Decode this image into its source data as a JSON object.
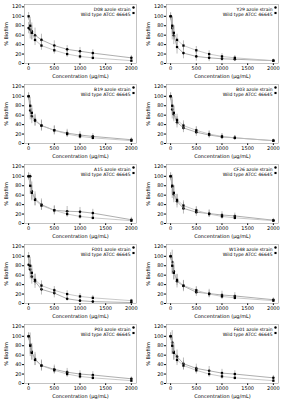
{
  "chart_data": [
    {
      "type": "line",
      "xlabel": "Concentration (μg/mL)",
      "ylabel": "% Biofilm",
      "x": [
        0,
        31.25,
        62.5,
        125,
        250,
        500,
        750,
        1000,
        1250,
        2000
      ],
      "xlim": [
        -80,
        2100
      ],
      "xticks": [
        0,
        500,
        1000,
        1500,
        2000
      ],
      "ylim": [
        0,
        125
      ],
      "yticks": [
        0,
        20,
        40,
        60,
        80,
        100,
        120
      ],
      "grid": false,
      "legend": "upper right",
      "series": [
        {
          "name": "D08 azole strain",
          "color": "#999999",
          "marker": "circle",
          "values": [
            75,
            72,
            68,
            60,
            50,
            38,
            30,
            26,
            22,
            12
          ],
          "yerr": [
            12,
            20,
            18,
            15,
            12,
            10,
            8,
            8,
            7,
            5
          ]
        },
        {
          "name": "Wild type ATCC 46645",
          "color": "#bbbbbb",
          "marker": "square",
          "values": [
            100,
            80,
            65,
            50,
            38,
            28,
            20,
            15,
            12,
            6
          ],
          "yerr": [
            8,
            18,
            15,
            12,
            10,
            8,
            7,
            6,
            5,
            3
          ]
        }
      ]
    },
    {
      "type": "line",
      "xlabel": "Concentration (μg/mL)",
      "ylabel": "% Biofilm",
      "x": [
        0,
        31.25,
        62.5,
        125,
        250,
        500,
        750,
        1000,
        1250,
        2000
      ],
      "xlim": [
        -80,
        2100
      ],
      "xticks": [
        0,
        500,
        1000,
        1500,
        2000
      ],
      "ylim": [
        0,
        125
      ],
      "yticks": [
        0,
        20,
        40,
        60,
        80,
        100,
        120
      ],
      "grid": false,
      "legend": "upper right",
      "series": [
        {
          "name": "Y29 azole strain",
          "color": "#999999",
          "marker": "circle",
          "values": [
            100,
            75,
            60,
            35,
            22,
            15,
            12,
            10,
            9,
            6
          ],
          "yerr": [
            5,
            25,
            20,
            15,
            12,
            10,
            8,
            6,
            5,
            3
          ]
        },
        {
          "name": "Wild type ATCC 46645",
          "color": "#bbbbbb",
          "marker": "square",
          "values": [
            100,
            80,
            65,
            50,
            38,
            28,
            20,
            15,
            12,
            6
          ],
          "yerr": [
            8,
            18,
            15,
            12,
            10,
            8,
            7,
            6,
            5,
            3
          ]
        }
      ]
    },
    {
      "type": "line",
      "xlabel": "Concentration (μg/mL)",
      "ylabel": "% Biofilm",
      "x": [
        0,
        31.25,
        62.5,
        125,
        250,
        500,
        750,
        1000,
        1250,
        2000
      ],
      "xlim": [
        -80,
        2100
      ],
      "xticks": [
        0,
        500,
        1000,
        1500,
        2000
      ],
      "ylim": [
        0,
        125
      ],
      "yticks": [
        0,
        20,
        40,
        60,
        80,
        100,
        120
      ],
      "grid": false,
      "legend": "upper right",
      "series": [
        {
          "name": "B19 azole strain",
          "color": "#999999",
          "marker": "circle",
          "values": [
            100,
            70,
            58,
            48,
            38,
            28,
            22,
            18,
            15,
            8
          ],
          "yerr": [
            5,
            20,
            16,
            12,
            12,
            10,
            8,
            7,
            6,
            4
          ]
        },
        {
          "name": "Wild type ATCC 46645",
          "color": "#bbbbbb",
          "marker": "square",
          "values": [
            100,
            80,
            65,
            50,
            38,
            28,
            20,
            15,
            12,
            6
          ],
          "yerr": [
            8,
            18,
            15,
            12,
            10,
            8,
            7,
            6,
            5,
            3
          ]
        }
      ]
    },
    {
      "type": "line",
      "xlabel": "Concentration (μg/mL)",
      "ylabel": "% Biofilm",
      "x": [
        0,
        31.25,
        62.5,
        125,
        250,
        500,
        750,
        1000,
        1250,
        2000
      ],
      "xlim": [
        -80,
        2100
      ],
      "xticks": [
        0,
        500,
        1000,
        1500,
        2000
      ],
      "ylim": [
        0,
        125
      ],
      "yticks": [
        0,
        20,
        40,
        60,
        80,
        100,
        120
      ],
      "grid": false,
      "legend": "upper right",
      "series": [
        {
          "name": "B03 azole strain",
          "color": "#999999",
          "marker": "circle",
          "values": [
            100,
            72,
            62,
            45,
            33,
            24,
            18,
            14,
            12,
            6
          ],
          "yerr": [
            5,
            20,
            16,
            12,
            10,
            9,
            7,
            6,
            5,
            3
          ]
        },
        {
          "name": "Wild type ATCC 46645",
          "color": "#bbbbbb",
          "marker": "square",
          "values": [
            100,
            80,
            65,
            50,
            38,
            28,
            20,
            15,
            12,
            6
          ],
          "yerr": [
            8,
            18,
            15,
            12,
            10,
            8,
            7,
            6,
            5,
            3
          ]
        }
      ]
    },
    {
      "type": "line",
      "xlabel": "Concentration (μg/mL)",
      "ylabel": "% Biofilm",
      "x": [
        0,
        31.25,
        62.5,
        125,
        250,
        500,
        750,
        1000,
        1250,
        2000
      ],
      "xlim": [
        -80,
        2100
      ],
      "xticks": [
        0,
        500,
        1000,
        1500,
        2000
      ],
      "ylim": [
        0,
        125
      ],
      "yticks": [
        0,
        20,
        40,
        60,
        80,
        100,
        120
      ],
      "grid": false,
      "legend": "upper right",
      "series": [
        {
          "name": "A15 azole strain",
          "color": "#999999",
          "marker": "circle",
          "values": [
            100,
            100,
            68,
            52,
            40,
            28,
            26,
            25,
            22,
            8
          ],
          "yerr": [
            5,
            5,
            20,
            15,
            12,
            10,
            10,
            9,
            8,
            5
          ]
        },
        {
          "name": "Wild type ATCC 46645",
          "color": "#bbbbbb",
          "marker": "square",
          "values": [
            100,
            80,
            65,
            50,
            38,
            28,
            20,
            15,
            12,
            6
          ],
          "yerr": [
            8,
            18,
            15,
            12,
            10,
            8,
            7,
            6,
            5,
            3
          ]
        }
      ]
    },
    {
      "type": "line",
      "xlabel": "Concentration (μg/mL)",
      "ylabel": "% Biofilm",
      "x": [
        0,
        31.25,
        62.5,
        125,
        250,
        500,
        750,
        1000,
        1250,
        2000
      ],
      "xlim": [
        -80,
        2100
      ],
      "xticks": [
        0,
        500,
        1000,
        1500,
        2000
      ],
      "ylim": [
        0,
        125
      ],
      "yticks": [
        0,
        20,
        40,
        60,
        80,
        100,
        120
      ],
      "grid": false,
      "legend": "upper right",
      "series": [
        {
          "name": "CF26 azole strain",
          "color": "#999999",
          "marker": "circle",
          "values": [
            100,
            78,
            62,
            47,
            32,
            24,
            21,
            18,
            16,
            7
          ],
          "yerr": [
            5,
            25,
            18,
            14,
            12,
            9,
            8,
            7,
            6,
            4
          ]
        },
        {
          "name": "Wild type ATCC 46645",
          "color": "#bbbbbb",
          "marker": "square",
          "values": [
            100,
            80,
            65,
            50,
            38,
            28,
            20,
            15,
            12,
            6
          ],
          "yerr": [
            8,
            18,
            15,
            12,
            10,
            8,
            7,
            6,
            5,
            3
          ]
        }
      ]
    },
    {
      "type": "line",
      "xlabel": "Concentration (μg/mL)",
      "ylabel": "% Biofilm",
      "x": [
        0,
        31.25,
        62.5,
        125,
        250,
        500,
        750,
        1000,
        1250,
        2000
      ],
      "xlim": [
        -80,
        2100
      ],
      "xticks": [
        0,
        500,
        1000,
        1500,
        2000
      ],
      "ylim": [
        0,
        125
      ],
      "yticks": [
        0,
        20,
        40,
        60,
        80,
        100,
        120
      ],
      "grid": false,
      "legend": "upper right",
      "series": [
        {
          "name": "F001 azole strain",
          "color": "#999999",
          "marker": "circle",
          "values": [
            82,
            72,
            57,
            47,
            30,
            22,
            10,
            6,
            4,
            2
          ],
          "yerr": [
            12,
            20,
            16,
            15,
            12,
            10,
            5,
            3,
            3,
            2
          ]
        },
        {
          "name": "Wild type ATCC 46645",
          "color": "#bbbbbb",
          "marker": "square",
          "values": [
            100,
            80,
            65,
            50,
            38,
            28,
            20,
            15,
            12,
            6
          ],
          "yerr": [
            8,
            18,
            15,
            12,
            10,
            8,
            7,
            6,
            5,
            3
          ]
        }
      ]
    },
    {
      "type": "line",
      "xlabel": "Concentration (μg/mL)",
      "ylabel": "% Biofilm",
      "x": [
        0,
        31.25,
        62.5,
        125,
        250,
        500,
        750,
        1000,
        1250,
        2000
      ],
      "xlim": [
        -80,
        2100
      ],
      "xticks": [
        0,
        500,
        1000,
        1500,
        2000
      ],
      "ylim": [
        0,
        125
      ],
      "yticks": [
        0,
        20,
        40,
        60,
        80,
        100,
        120
      ],
      "grid": false,
      "legend": "upper right",
      "series": [
        {
          "name": "W1348 azole strain",
          "color": "#999999",
          "marker": "circle",
          "values": [
            100,
            88,
            68,
            47,
            37,
            24,
            21,
            18,
            16,
            8
          ],
          "yerr": [
            5,
            25,
            18,
            14,
            12,
            9,
            9,
            8,
            7,
            4
          ]
        },
        {
          "name": "Wild type ATCC 46645",
          "color": "#bbbbbb",
          "marker": "square",
          "values": [
            100,
            80,
            65,
            50,
            38,
            28,
            20,
            15,
            12,
            6
          ],
          "yerr": [
            8,
            18,
            15,
            12,
            10,
            8,
            7,
            6,
            5,
            3
          ]
        }
      ]
    },
    {
      "type": "line",
      "xlabel": "Concentration (μg/mL)",
      "ylabel": "% Biofilm",
      "x": [
        0,
        31.25,
        62.5,
        125,
        250,
        500,
        750,
        1000,
        1250,
        2000
      ],
      "xlim": [
        -80,
        2100
      ],
      "xticks": [
        0,
        500,
        1000,
        1500,
        2000
      ],
      "ylim": [
        0,
        125
      ],
      "yticks": [
        0,
        20,
        40,
        60,
        80,
        100,
        120
      ],
      "grid": false,
      "legend": "upper right",
      "series": [
        {
          "name": "P03 azole strain",
          "color": "#999999",
          "marker": "circle",
          "values": [
            100,
            82,
            67,
            52,
            38,
            30,
            24,
            20,
            18,
            10
          ],
          "yerr": [
            5,
            25,
            18,
            14,
            12,
            9,
            8,
            7,
            7,
            4
          ]
        },
        {
          "name": "Wild type ATCC 46645",
          "color": "#bbbbbb",
          "marker": "square",
          "values": [
            100,
            80,
            65,
            50,
            38,
            28,
            20,
            15,
            12,
            6
          ],
          "yerr": [
            8,
            18,
            15,
            12,
            10,
            8,
            7,
            6,
            5,
            3
          ]
        }
      ]
    },
    {
      "type": "line",
      "xlabel": "Concentration (μg/mL)",
      "ylabel": "% Biofilm",
      "x": [
        0,
        31.25,
        62.5,
        125,
        250,
        500,
        750,
        1000,
        1250,
        2000
      ],
      "xlim": [
        -80,
        2100
      ],
      "xticks": [
        0,
        500,
        1000,
        1500,
        2000
      ],
      "ylim": [
        0,
        125
      ],
      "yticks": [
        0,
        20,
        40,
        60,
        80,
        100,
        120
      ],
      "grid": false,
      "legend": "upper right",
      "series": [
        {
          "name": "F601 azole strain",
          "color": "#999999",
          "marker": "circle",
          "values": [
            100,
            87,
            67,
            57,
            42,
            32,
            27,
            22,
            20,
            12
          ],
          "yerr": [
            5,
            25,
            18,
            14,
            12,
            9,
            9,
            8,
            7,
            5
          ]
        },
        {
          "name": "Wild type ATCC 46645",
          "color": "#bbbbbb",
          "marker": "square",
          "values": [
            100,
            80,
            65,
            50,
            38,
            28,
            20,
            15,
            12,
            6
          ],
          "yerr": [
            8,
            18,
            15,
            12,
            10,
            8,
            7,
            6,
            5,
            3
          ]
        }
      ]
    }
  ]
}
